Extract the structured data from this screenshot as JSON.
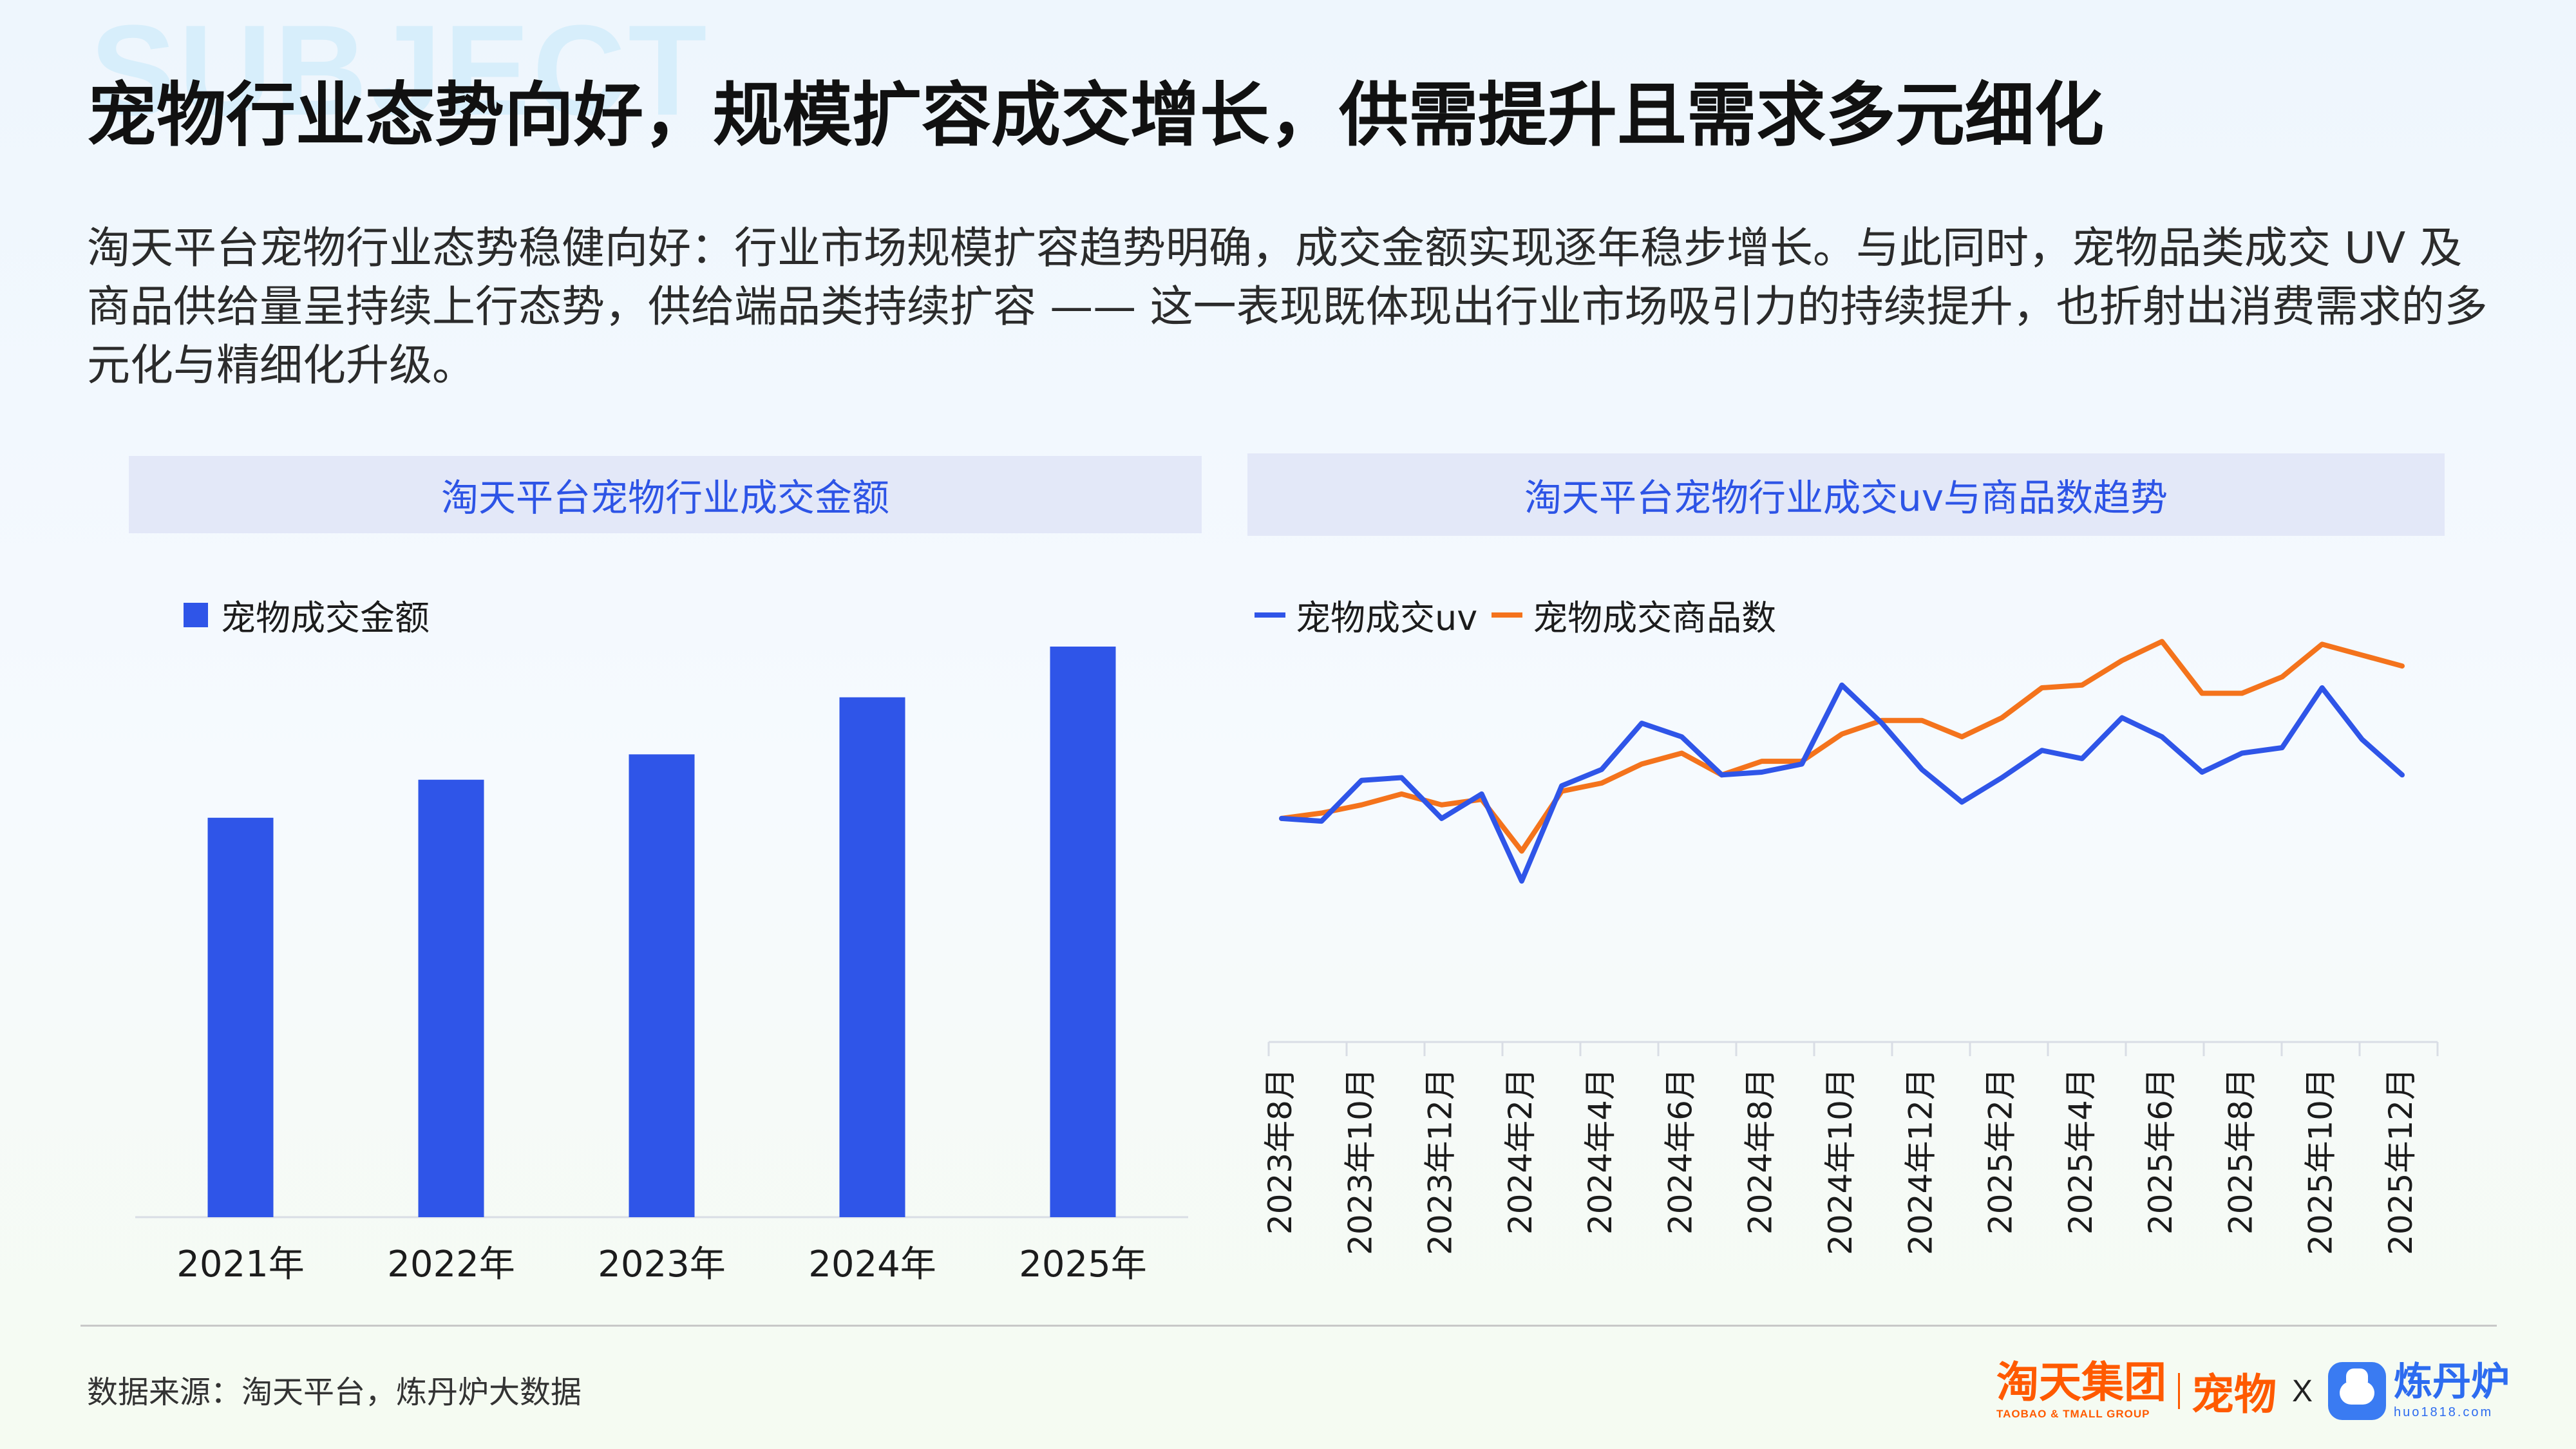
{
  "watermark": "SUBJECT",
  "title": "宠物行业态势向好，规模扩容成交增长，供需提升且需求多元细化",
  "intro": "淘天平台宠物行业态势稳健向好：行业市场规模扩容趋势明确，成交金额实现逐年稳步增长。与此同时，宠物品类成交 UV 及商品供给量呈持续上行态势，供给端品类持续扩容 —— 这一表现既体现出行业市场吸引力的持续提升，也折射出消费需求的多元化与精细化升级。",
  "colors": {
    "bar": "#2f55e8",
    "uv": "#2f55e8",
    "items": "#f4731c",
    "accent": "#2d54e6"
  },
  "chart_data": [
    {
      "type": "bar",
      "title": "淘天平台宠物行业成交金额",
      "categories": [
        "2021年",
        "2022年",
        "2023年",
        "2024年",
        "2025年"
      ],
      "series": [
        {
          "name": "宠物成交金额",
          "values": [
            63,
            69,
            73,
            82,
            90
          ]
        }
      ],
      "ylim": [
        0,
        90
      ],
      "grid": false,
      "legend": "top-left"
    },
    {
      "type": "line",
      "title": "淘天平台宠物行业成交uv与商品数趋势",
      "categories": [
        "2023年8月",
        "2023年9月",
        "2023年10月",
        "2023年11月",
        "2023年12月",
        "2024年1月",
        "2024年2月",
        "2024年3月",
        "2024年4月",
        "2024年5月",
        "2024年6月",
        "2024年7月",
        "2024年8月",
        "2024年9月",
        "2024年10月",
        "2024年11月",
        "2024年12月",
        "2025年1月",
        "2025年2月",
        "2025年3月",
        "2025年4月",
        "2025年5月",
        "2025年6月",
        "2025年7月",
        "2025年8月",
        "2025年9月",
        "2025年10月",
        "2025年11月",
        "2025年12月"
      ],
      "tick_labels": [
        "2023年8月",
        "2023年10月",
        "2023年12月",
        "2024年2月",
        "2024年4月",
        "2024年6月",
        "2024年8月",
        "2024年10月",
        "2024年12月",
        "2025年2月",
        "2025年4月",
        "2025年6月",
        "2025年8月",
        "2025年10月",
        "2025年12月"
      ],
      "series": [
        {
          "name": "宠物成交uv",
          "values": [
            100,
            99,
            114,
            115,
            100,
            109,
            77,
            112,
            118,
            135,
            130,
            116,
            117,
            120,
            149,
            135,
            118,
            106,
            115,
            125,
            122,
            137,
            130,
            117,
            124,
            126,
            148,
            129,
            116
          ]
        },
        {
          "name": "宠物成交商品数",
          "values": [
            100,
            102,
            105,
            109,
            105,
            107,
            88,
            110,
            113,
            120,
            124,
            116,
            121,
            121,
            131,
            136,
            136,
            130,
            137,
            148,
            149,
            158,
            165,
            146,
            146,
            152,
            164,
            160,
            156
          ]
        }
      ],
      "ylim": [
        60,
        170
      ],
      "grid": false,
      "legend": "top-left"
    }
  ],
  "footer": {
    "source": "数据来源：淘天平台，炼丹炉大数据",
    "brand_main": "淘天集团",
    "brand_sub": "TAOBAO & TMALL GROUP",
    "brand_pet": "宠物",
    "times": "X",
    "partner_main": "炼丹炉",
    "partner_sub": "huo1818.com",
    "partner_icon": "cat-face-icon"
  }
}
